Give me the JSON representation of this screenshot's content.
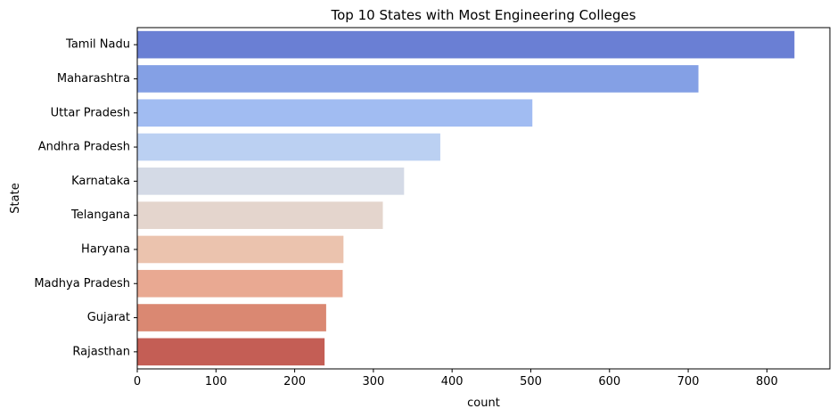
{
  "chart_data": {
    "type": "bar",
    "orientation": "horizontal",
    "title": "Top 10 States with Most Engineering Colleges",
    "xlabel": "count",
    "ylabel": "State",
    "categories": [
      "Tamil Nadu",
      "Maharashtra",
      "Uttar Pradesh",
      "Andhra Pradesh",
      "Karnataka",
      "Telangana",
      "Haryana",
      "Madhya Pradesh",
      "Gujarat",
      "Rajasthan"
    ],
    "values": [
      835,
      713,
      502,
      385,
      339,
      312,
      262,
      261,
      240,
      238
    ],
    "colors": [
      "#6a7fd4",
      "#84a0e5",
      "#a1bcf2",
      "#bbd0f2",
      "#d4dae6",
      "#e4d5cd",
      "#ebc3ae",
      "#e9a992",
      "#da8872",
      "#c45e55"
    ],
    "xlim": [
      0,
      880
    ],
    "xticks": [
      0,
      100,
      200,
      300,
      400,
      500,
      600,
      700,
      800
    ],
    "grid": false,
    "legend": "none"
  }
}
